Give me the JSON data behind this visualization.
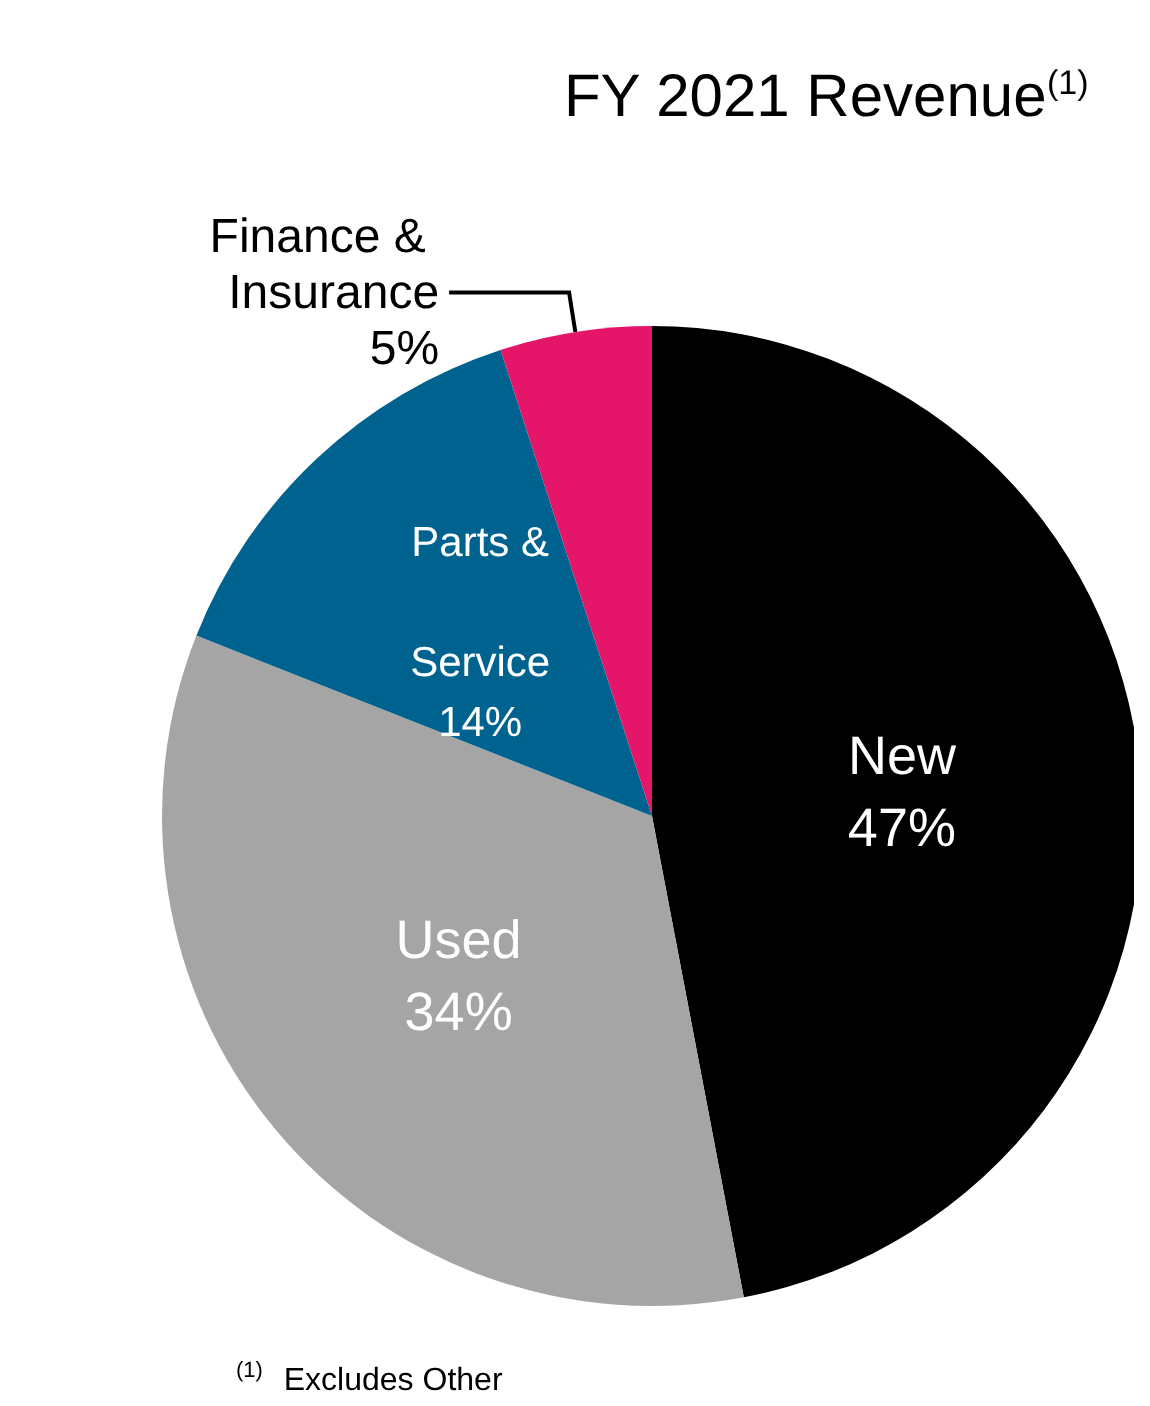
{
  "chart_data": {
    "type": "pie",
    "title": "FY 2021 Revenue$^{(1)}$",
    "categories": [
      "New",
      "Used",
      "Parts & Service",
      "Finance & Insurance"
    ],
    "values": [
      47,
      34,
      14,
      5
    ],
    "colors": [
      "#000000",
      "#a5a5a5",
      "#00628f",
      "#e5166a"
    ],
    "value_labels": [
      "47%",
      "34%",
      "14%",
      "5%"
    ],
    "legend": false,
    "annotations": [
      "$^{(1)}$ Excludes Other"
    ]
  }
}
